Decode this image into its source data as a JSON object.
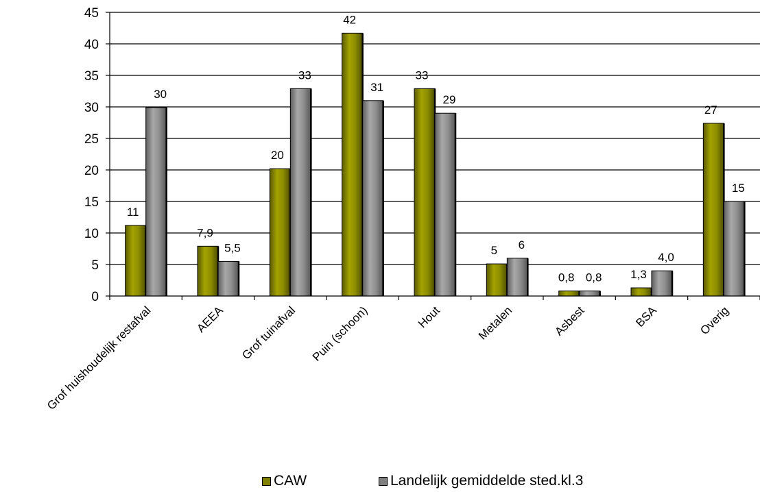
{
  "chart_data": {
    "type": "bar",
    "title": "",
    "xlabel": "",
    "ylabel": "",
    "ylim": [
      0,
      45
    ],
    "yticks": [
      0,
      5,
      10,
      15,
      20,
      25,
      30,
      35,
      40,
      45
    ],
    "grid": true,
    "legend_position": "bottom",
    "categories": [
      "Grof huishoudelijk restafval",
      "AEEA",
      "Grof tuinafval",
      "Puin (schoon)",
      "Hout",
      "Metalen",
      "Asbest",
      "BSA",
      "Overig"
    ],
    "series": [
      {
        "name": "CAW",
        "color": "#808000",
        "values": [
          11.2,
          7.9,
          20.2,
          41.7,
          32.9,
          5.1,
          0.8,
          1.3,
          27.4
        ],
        "labels": [
          "11",
          "7,9",
          "20",
          "42",
          "33",
          "5",
          "0,8",
          "1,3",
          "27"
        ]
      },
      {
        "name": "Landelijk gemiddelde sted.kl.3",
        "color": "#808080",
        "values": [
          29.9,
          5.5,
          32.9,
          31.0,
          29.0,
          6.0,
          0.8,
          4.0,
          15.0
        ],
        "labels": [
          "30",
          "5,5",
          "33",
          "31",
          "29",
          "6",
          "0,8",
          "4,0",
          "15"
        ]
      }
    ]
  }
}
